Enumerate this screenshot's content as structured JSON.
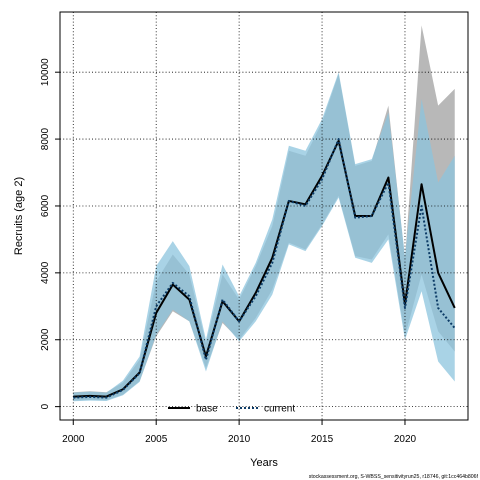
{
  "chart_data": {
    "type": "line",
    "title": "",
    "xlabel": "Years",
    "ylabel": "Recruits (age 2)",
    "xlim": [
      1999.2,
      2023.8
    ],
    "ylim": [
      -400,
      11800
    ],
    "x_ticks": [
      2000,
      2005,
      2010,
      2015,
      2020
    ],
    "y_ticks": [
      0,
      2000,
      4000,
      6000,
      8000,
      10000
    ],
    "grid": true,
    "legend_position": "bottom-center",
    "x": [
      2000,
      2001,
      2002,
      2003,
      2004,
      2005,
      2006,
      2007,
      2008,
      2009,
      2010,
      2011,
      2012,
      2013,
      2014,
      2015,
      2016,
      2017,
      2018,
      2019,
      2020,
      2021,
      2022,
      2023
    ],
    "series": [
      {
        "name": "base",
        "line_style": "solid",
        "line_color": "#000000",
        "band_color": "#a6a6a6",
        "values": [
          300,
          320,
          300,
          520,
          1020,
          2800,
          3650,
          3200,
          1500,
          3150,
          2550,
          3400,
          4450,
          6150,
          6050,
          6900,
          7950,
          5700,
          5700,
          6850,
          3050,
          6650,
          4000,
          2950
        ],
        "lower": [
          180,
          200,
          190,
          360,
          760,
          2100,
          2850,
          2550,
          1150,
          2500,
          2000,
          2650,
          3500,
          4900,
          4700,
          5450,
          6300,
          4500,
          4400,
          5150,
          2100,
          3950,
          2250,
          1650
        ],
        "upper": [
          430,
          460,
          430,
          720,
          1400,
          3750,
          4550,
          3950,
          1900,
          3950,
          3200,
          4200,
          5400,
          7650,
          7500,
          8500,
          9950,
          7200,
          7350,
          9000,
          4400,
          11400,
          9000,
          9500
        ]
      },
      {
        "name": "current",
        "line_style": "dotted",
        "line_color": "#0c3b66",
        "band_color": "#8cc4de",
        "values": [
          270,
          290,
          270,
          500,
          1000,
          3000,
          3700,
          3300,
          1400,
          3200,
          2550,
          3300,
          4300,
          6150,
          6000,
          6800,
          8000,
          5650,
          5700,
          6700,
          2950,
          6000,
          2950,
          2350
        ],
        "lower": [
          160,
          180,
          170,
          340,
          740,
          2150,
          2900,
          2550,
          1050,
          2550,
          1950,
          2550,
          3350,
          4850,
          4650,
          5400,
          6250,
          4450,
          4300,
          5000,
          2000,
          3450,
          1350,
          750
        ],
        "upper": [
          420,
          450,
          420,
          780,
          1500,
          4200,
          4950,
          4200,
          2000,
          4250,
          3300,
          4300,
          5600,
          7800,
          7650,
          8600,
          10000,
          7250,
          7400,
          8800,
          4500,
          9200,
          6700,
          7500
        ]
      }
    ]
  },
  "caption": "stockassessment.org, S-WBSS_sensitivityrun25, r18746, git:1cc464b806f"
}
